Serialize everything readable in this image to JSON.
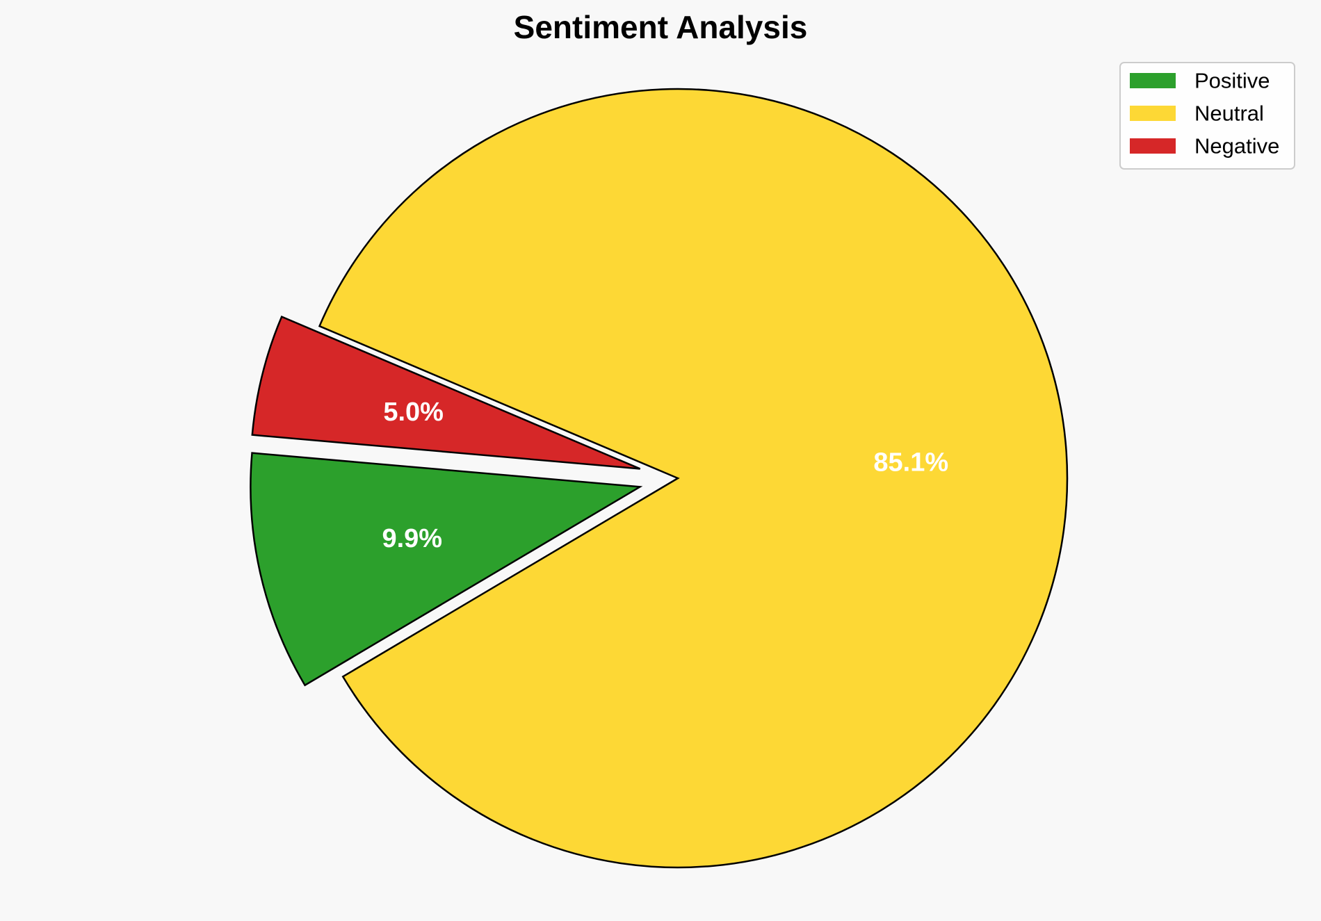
{
  "chart_data": {
    "type": "pie",
    "title": "Sentiment Analysis",
    "categories": [
      "Positive",
      "Neutral",
      "Negative"
    ],
    "values": [
      9.9,
      85.1,
      5.0
    ],
    "value_labels": [
      "9.9%",
      "85.1%",
      "5.0%"
    ],
    "colors": [
      "#2ca02c",
      "#fdd835",
      "#d62728"
    ],
    "exploded": [
      true,
      false,
      true
    ],
    "start_angle_deg": 175,
    "direction": "counterclockwise",
    "legend": {
      "placement": "top-right",
      "entries": [
        "Positive",
        "Neutral",
        "Negative"
      ]
    }
  }
}
